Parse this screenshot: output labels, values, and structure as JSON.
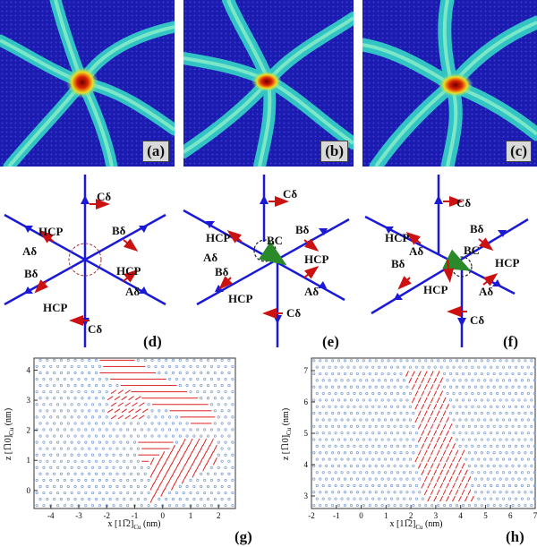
{
  "panels_top": [
    "(a)",
    "(b)",
    "(c)"
  ],
  "panels_mid": [
    "(d)",
    "(e)",
    "(f)"
  ],
  "panels_bottom": [
    "(g)",
    "(h)"
  ],
  "diagram_d": {
    "labels": [
      "Cδ",
      "HCP",
      "Bδ",
      "Aδ",
      "HCP",
      "Bδ",
      "HCP",
      "Aδ",
      "Cδ"
    ]
  },
  "diagram_e": {
    "labels": [
      "Cδ",
      "HCP",
      "Bδ",
      "Aδ",
      "BC",
      "HCP",
      "Bδ",
      "HCP",
      "Aδ",
      "Cδ"
    ]
  },
  "diagram_f": {
    "labels": [
      "Cδ",
      "HCP",
      "Bδ",
      "Aδ",
      "BC",
      "Bδ",
      "HCP",
      "HCP",
      "Aδ",
      "Cδ"
    ]
  },
  "plot_g": {
    "xlabel": "x [11̅2]",
    "xlabel_sub": "Cu",
    "xlabel_unit": "(nm)",
    "ylabel": "z [1̅10]",
    "ylabel_sub": "Cu",
    "ylabel_unit": "(nm)",
    "xticks": [
      "-4",
      "-3",
      "-2",
      "-1",
      "0",
      "1",
      "2"
    ],
    "yticks": [
      "0",
      "1",
      "2",
      "3",
      "4"
    ],
    "xlim": [
      -4.6,
      2.6
    ],
    "ylim": [
      -0.6,
      4.4
    ]
  },
  "plot_h": {
    "xlabel": "x [11̅2]",
    "xlabel_sub": "Cu",
    "xlabel_unit": "(nm)",
    "ylabel": "z [1̅10]",
    "ylabel_sub": "Cu",
    "ylabel_unit": "(nm)",
    "xticks": [
      "-2",
      "-1",
      "0",
      "1",
      "2",
      "3",
      "4",
      "5",
      "6",
      "7"
    ],
    "yticks": [
      "3",
      "4",
      "5",
      "6",
      "7"
    ],
    "xlim": [
      -2,
      7
    ],
    "ylim": [
      2.6,
      7.4
    ]
  },
  "colors": {
    "background": "#1b1bb0",
    "line": "#1a1ad6",
    "arrow": "#cc1111",
    "green": "#2a8a2a",
    "atom": "#7799cc",
    "vector": "#dd2222"
  }
}
